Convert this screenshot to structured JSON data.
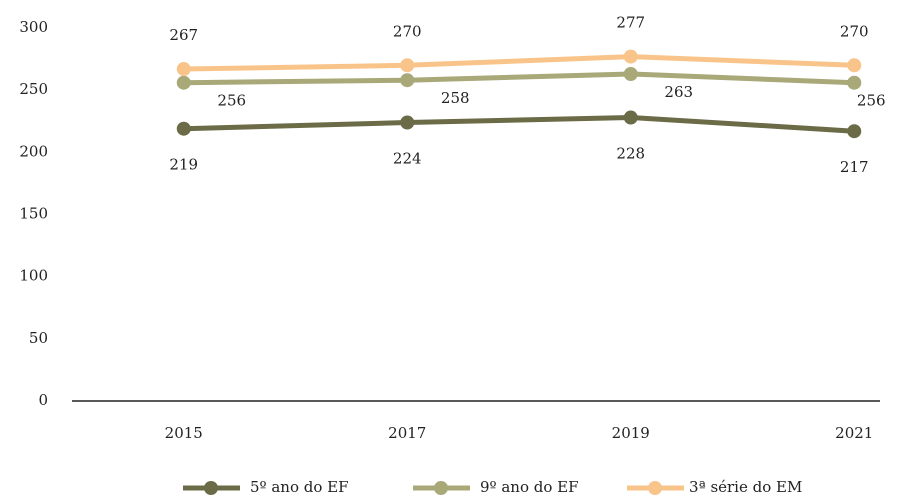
{
  "chart_data": {
    "type": "line",
    "categories": [
      "2015",
      "2017",
      "2019",
      "2021"
    ],
    "series": [
      {
        "name": "5º ano do EF",
        "color": "#6b6b47",
        "values": [
          219,
          224,
          228,
          217
        ]
      },
      {
        "name": "9º ano do EF",
        "color": "#a8a878",
        "values": [
          256,
          258,
          263,
          256
        ]
      },
      {
        "name": "3ª série do EM",
        "color": "#f9c48a",
        "values": [
          267,
          270,
          277,
          270
        ]
      }
    ],
    "ylim": [
      0,
      300
    ],
    "yticks": [
      0,
      50,
      100,
      150,
      200,
      250,
      300
    ],
    "grid": false,
    "legend": "bottom"
  }
}
